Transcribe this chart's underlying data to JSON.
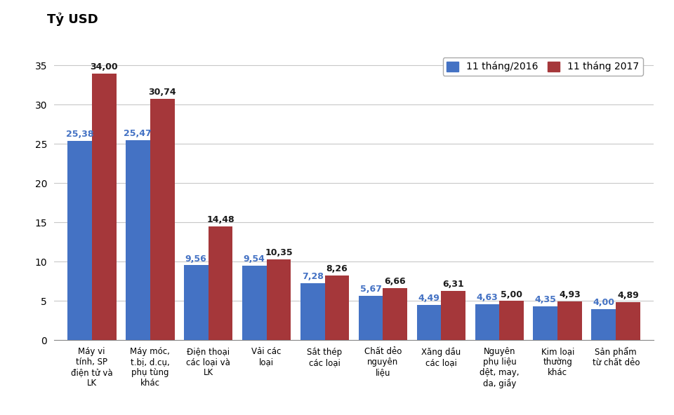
{
  "categories": [
    "Máy vi\ntính, SP\nđiện tử và\nLK",
    "Máy móc,\nt.bị, d.cụ,\nphụ tùng\nkhác",
    "Điện thoại\ncác loại và\nLK",
    "Vải các\nloại",
    "Sắt thép\ncác loại",
    "Chất dẻo\nnguyên\nliệu",
    "Xăng dầu\ncác loại",
    "Nguyên\nphụ liệu\ndệt, may,\nda, giầy",
    "Kim loại\nthường\nkhác",
    "Sản phẩm\ntừ chất dẻo"
  ],
  "values_2016": [
    25.38,
    25.47,
    9.56,
    9.54,
    7.28,
    5.67,
    4.49,
    4.63,
    4.35,
    4.0
  ],
  "values_2017": [
    34.0,
    30.74,
    14.48,
    10.35,
    8.26,
    6.66,
    6.31,
    5.0,
    4.93,
    4.89
  ],
  "color_2016": "#4472C4",
  "color_2017": "#A5373A",
  "legend_2016": "11 tháng/2016",
  "legend_2017": "11 tháng 2017",
  "chart_title": "Tỷ USD",
  "ylim": [
    0,
    37
  ],
  "yticks": [
    0,
    5,
    10,
    15,
    20,
    25,
    30,
    35
  ],
  "bar_width": 0.42,
  "background_color": "#FFFFFF",
  "grid_color": "#C8C8C8",
  "label_fontsize": 8.5,
  "value_fontsize": 9.0,
  "value_color_2016": "#4472C4",
  "value_color_2017": "#1A1A1A"
}
